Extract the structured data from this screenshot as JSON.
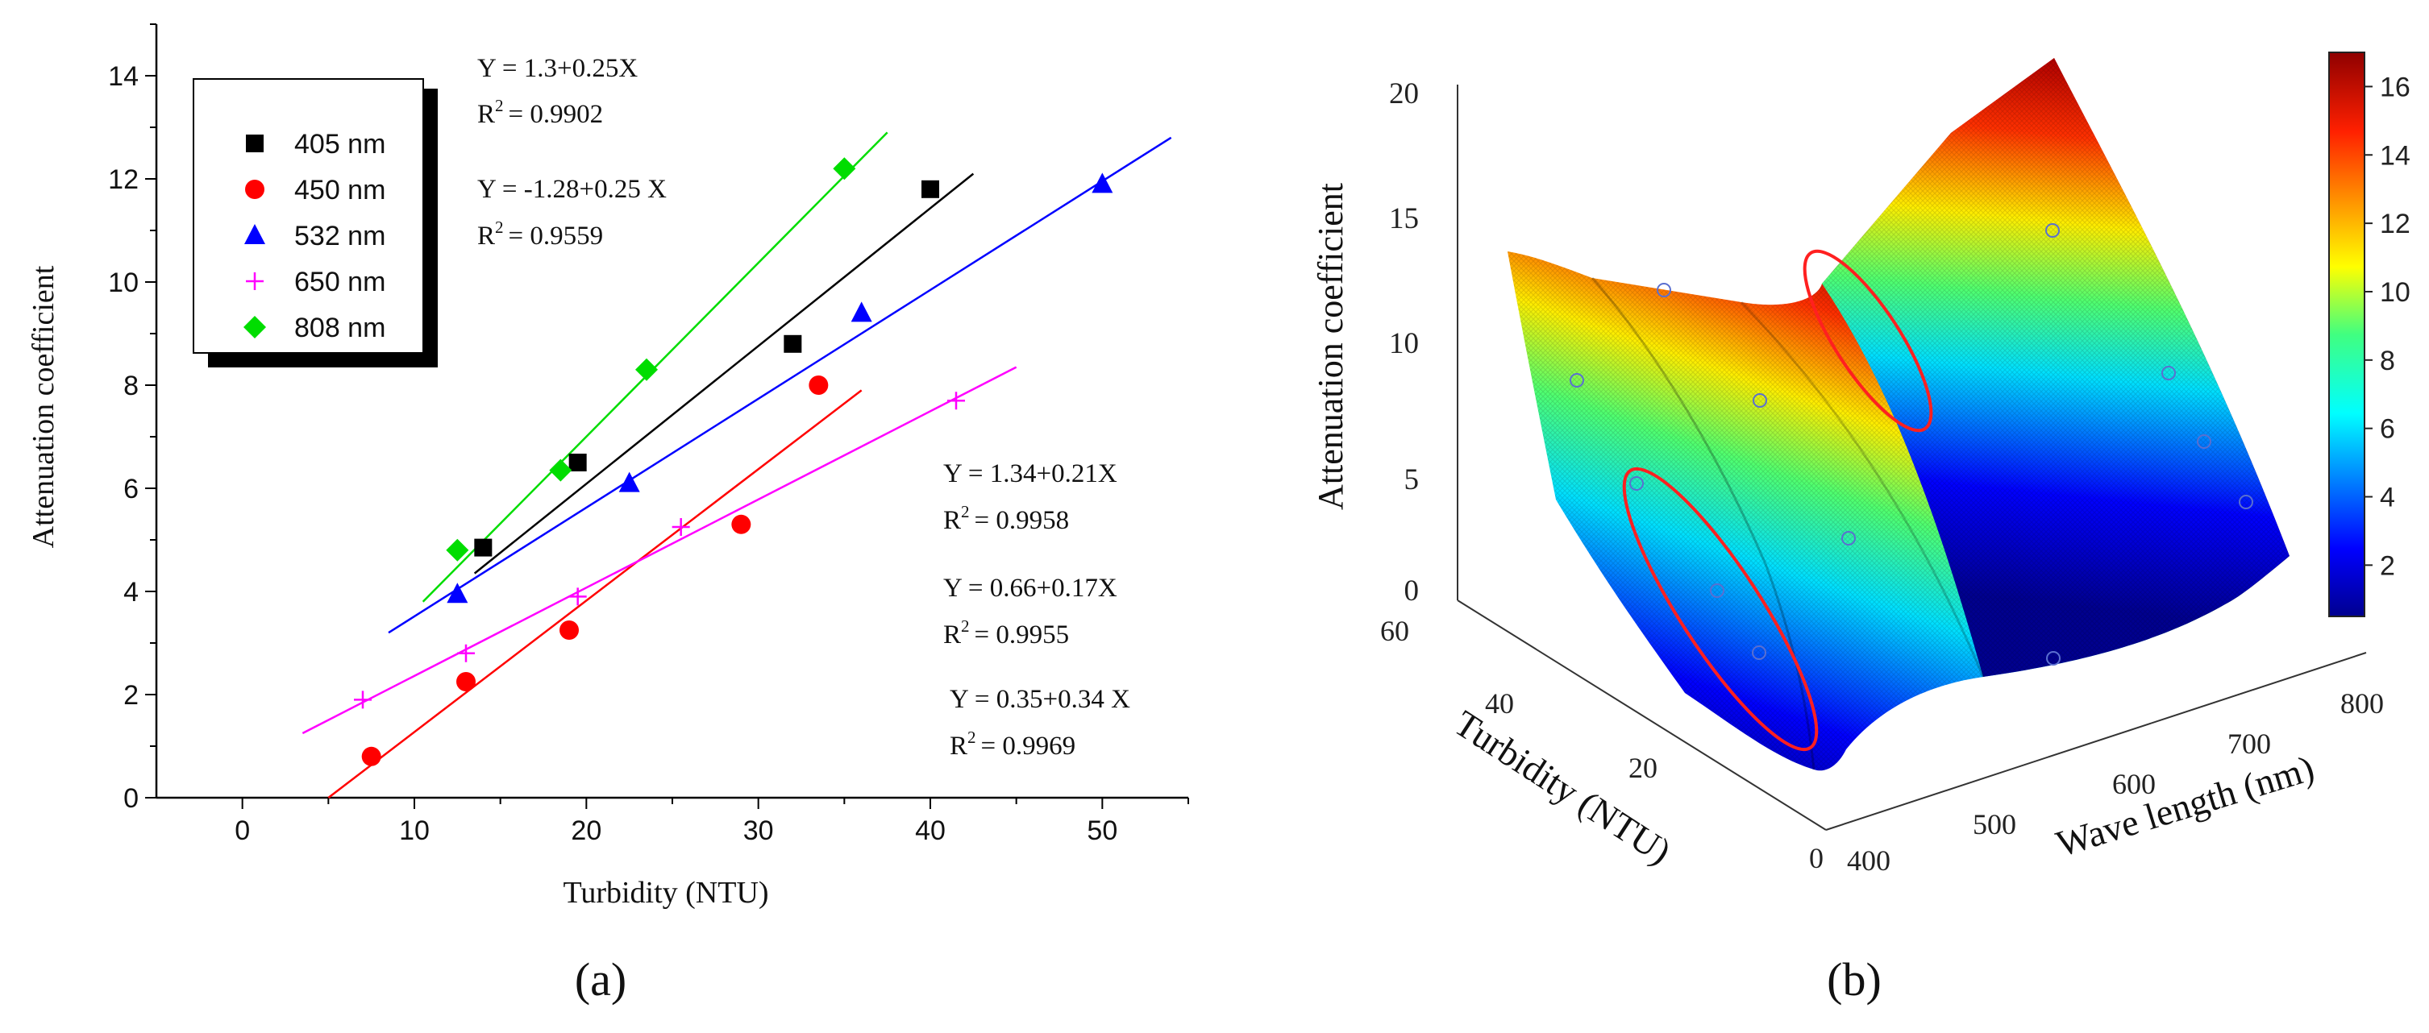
{
  "chart_data": [
    {
      "panel": "a",
      "panel_label": "(a)",
      "type": "scatter",
      "xlabel": "Turbidity (NTU)",
      "ylabel": "Attenuation coefficient",
      "xlim": [
        -5,
        55
      ],
      "ylim": [
        0,
        15
      ],
      "xticks": [
        0,
        10,
        20,
        30,
        40,
        50
      ],
      "yticks": [
        0,
        2,
        4,
        6,
        8,
        10,
        12,
        14
      ],
      "legend_position": "top-left",
      "series": [
        {
          "name": "405 nm",
          "color": "#000000",
          "marker": "square",
          "x": [
            14,
            19.5,
            32,
            40
          ],
          "y": [
            4.85,
            6.5,
            8.8,
            11.8
          ],
          "fit": {
            "x": [
              13.5,
              42.5
            ],
            "y": [
              4.35,
              12.1
            ]
          }
        },
        {
          "name": "450 nm",
          "color": "#ff0000",
          "marker": "circle",
          "x": [
            7.5,
            13,
            19,
            29,
            33.5
          ],
          "y": [
            0.8,
            2.25,
            3.25,
            5.3,
            8.0
          ],
          "fit": {
            "x": [
              5,
              36
            ],
            "y": [
              0.0,
              7.9
            ]
          }
        },
        {
          "name": "532 nm",
          "color": "#0000ff",
          "marker": "triangle",
          "x": [
            12.5,
            22.5,
            36,
            50
          ],
          "y": [
            3.95,
            6.1,
            9.4,
            11.9
          ],
          "fit": {
            "x": [
              8.5,
              54
            ],
            "y": [
              3.2,
              12.8
            ]
          }
        },
        {
          "name": "650 nm",
          "color": "#ff00ff",
          "marker": "plus",
          "x": [
            7,
            13,
            19.5,
            25.5,
            41.5
          ],
          "y": [
            1.9,
            2.8,
            3.9,
            5.25,
            7.7
          ],
          "fit": {
            "x": [
              3.5,
              45
            ],
            "y": [
              1.25,
              8.35
            ]
          }
        },
        {
          "name": "808 nm",
          "color": "#00dd00",
          "marker": "diamond",
          "x": [
            12.5,
            18.5,
            23.5,
            35
          ],
          "y": [
            4.8,
            6.35,
            8.3,
            12.2
          ],
          "fit": {
            "x": [
              10.5,
              37.5
            ],
            "y": [
              3.8,
              12.9
            ]
          }
        }
      ],
      "annotations": [
        {
          "eq": "Y = 1.3+0.25X",
          "r2": "R",
          "r2val": "= 0.9902"
        },
        {
          "eq": "Y = -1.28+0.25 X",
          "r2": "R",
          "r2val": "= 0.9559"
        },
        {
          "eq": "Y = 1.34+0.21X",
          "r2": "R",
          "r2val": "= 0.9958"
        },
        {
          "eq": "Y = 0.66+0.17X",
          "r2": "R",
          "r2val": "= 0.9955"
        },
        {
          "eq": "Y = 0.35+0.34 X",
          "r2": "R",
          "r2val": "= 0.9969"
        }
      ],
      "r2_superscript": "2"
    },
    {
      "panel": "b",
      "panel_label": "(b)",
      "type": "surface",
      "zlabel": "Attenuation coefficient",
      "xlabel": "Wave length (nm)",
      "ylabel": "Turbidity (NTU)",
      "zticks": [
        "0",
        "5",
        "10",
        "15",
        "20"
      ],
      "xticks": [
        "400",
        "500",
        "600",
        "700",
        "800"
      ],
      "yticks": [
        "0",
        "20",
        "40",
        "60"
      ],
      "colorbar_ticks": [
        "2",
        "4",
        "6",
        "8",
        "10",
        "12",
        "14",
        "16"
      ],
      "colorbar_range": [
        0.5,
        17
      ],
      "highlight_ellipses": 2
    }
  ]
}
